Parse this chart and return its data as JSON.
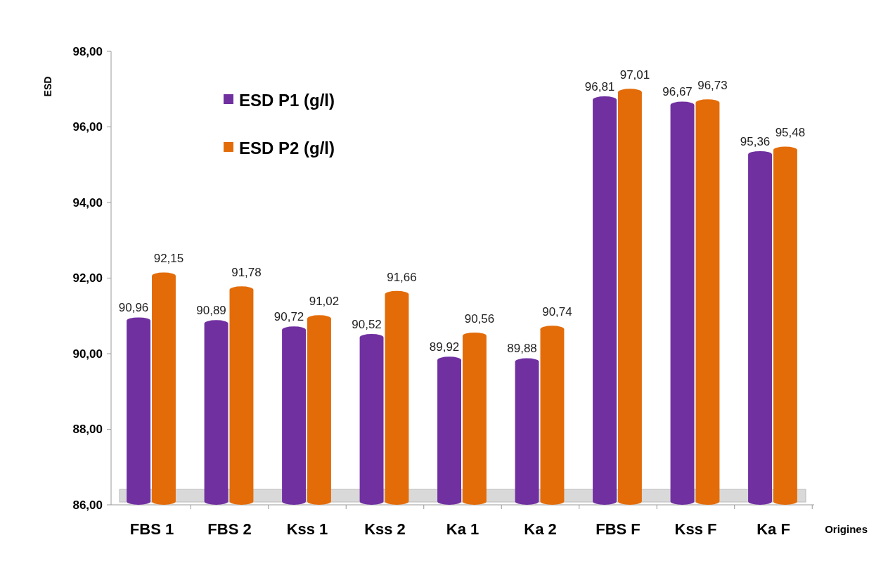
{
  "chart_data": {
    "type": "bar",
    "xlabel": "Origines",
    "ylabel": "ESD",
    "categories": [
      "FBS 1",
      "FBS 2",
      "Kss 1",
      "Kss 2",
      "Ka 1",
      "Ka 2",
      "FBS F",
      "Kss F",
      "Ka F"
    ],
    "series": [
      {
        "name": "ESD P1 (g/l)",
        "color": "#7030a0",
        "values": [
          90.96,
          90.89,
          90.72,
          90.52,
          89.92,
          89.88,
          96.81,
          96.67,
          95.36
        ],
        "value_labels": [
          "90,96",
          "90,89",
          "90,72",
          "90,52",
          "89,92",
          "89,88",
          "96,81",
          "96,67",
          "95,36"
        ]
      },
      {
        "name": "ESD P2 (g/l)",
        "color": "#e36c09",
        "values": [
          92.15,
          91.78,
          91.02,
          91.66,
          90.56,
          90.74,
          97.01,
          96.73,
          95.48
        ],
        "value_labels": [
          "92,15",
          "91,78",
          "91,02",
          "91,66",
          "90,56",
          "90,74",
          "97,01",
          "96,73",
          "95,48"
        ]
      }
    ],
    "ylim": [
      86,
      98
    ],
    "yticks": [
      {
        "value": 86,
        "label": "86,00"
      },
      {
        "value": 88,
        "label": "88,00"
      },
      {
        "value": 90,
        "label": "90,00"
      },
      {
        "value": 92,
        "label": "92,00"
      },
      {
        "value": 94,
        "label": "94,00"
      },
      {
        "value": 96,
        "label": "96,00"
      },
      {
        "value": 98,
        "label": "98,00"
      }
    ],
    "legend": "top left"
  }
}
